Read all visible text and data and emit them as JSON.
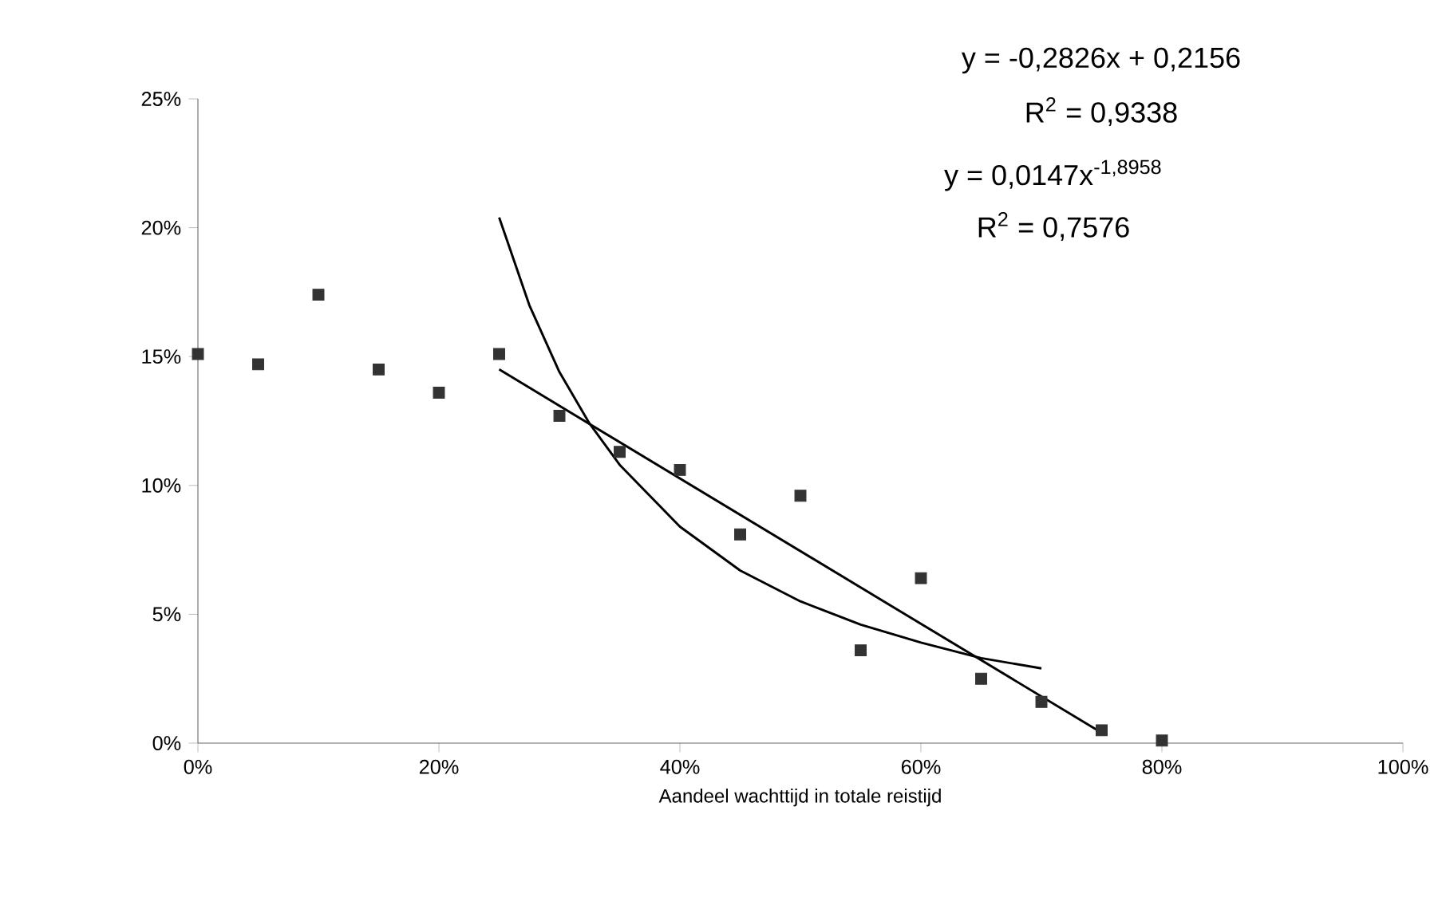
{
  "chart_data": {
    "type": "scatter",
    "xlabel": "Aandeel wachttijd in totale reistijd",
    "series": [
      {
        "color": "#333333",
        "marker": "square",
        "x": [
          0,
          5,
          10,
          15,
          20,
          25,
          30,
          35,
          40,
          45,
          50,
          55,
          60,
          65,
          70,
          75,
          80
        ],
        "values": [
          15.1,
          14.7,
          17.4,
          14.5,
          13.6,
          15.1,
          12.7,
          11.3,
          10.6,
          8.1,
          9.6,
          3.6,
          6.4,
          2.5,
          1.6,
          0.5,
          0.1
        ]
      },
      {
        "type": "line",
        "color": "#000000",
        "marker": "none",
        "x": [
          25,
          75
        ],
        "values": [
          14.5,
          0.4
        ]
      },
      {
        "type": "line",
        "color": "#000000",
        "marker": "none",
        "x": [
          25,
          27.5,
          30,
          32.5,
          35,
          40,
          45,
          50,
          55,
          60,
          65,
          70
        ],
        "values": [
          20.4,
          17.0,
          14.4,
          12.4,
          10.8,
          8.4,
          6.7,
          5.5,
          4.6,
          3.9,
          3.3,
          2.9
        ]
      }
    ],
    "xlim": [
      0,
      100
    ],
    "xticks": [
      {
        "value": 0,
        "label": "0%"
      },
      {
        "value": 20,
        "label": "20%"
      },
      {
        "value": 40,
        "label": "40%"
      },
      {
        "value": 60,
        "label": "60%"
      },
      {
        "value": 80,
        "label": "80%"
      },
      {
        "value": 100,
        "label": "100%"
      }
    ],
    "ylim": [
      0,
      25
    ],
    "yticks": [
      {
        "value": 0,
        "label": "0%"
      },
      {
        "value": 5,
        "label": "5%"
      },
      {
        "value": 10,
        "label": "10%"
      },
      {
        "value": 15,
        "label": "15%"
      },
      {
        "value": 20,
        "label": "20%"
      },
      {
        "value": 25,
        "label": "25%"
      }
    ],
    "annotations": [
      "y = -0,2826x + 0,2156",
      "R$^{2}$ = 0,9338",
      "y = 0,0147x$^{-1,8958}$",
      "R$^{2}$ = 0,7576"
    ],
    "grid": false
  }
}
